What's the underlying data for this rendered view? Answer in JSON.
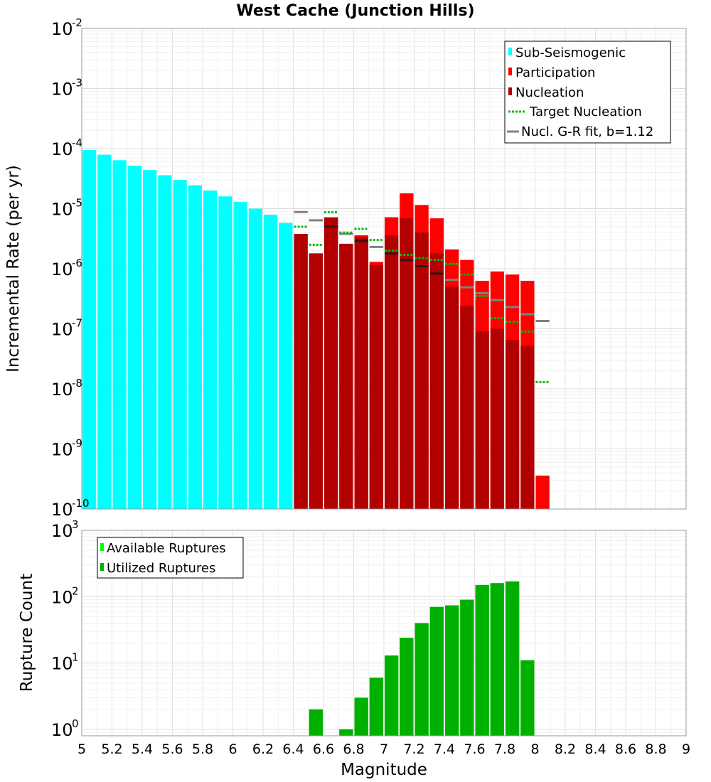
{
  "chart_data": [
    {
      "type": "bar",
      "title": "West Cache (Junction Hills)",
      "xlabel": "",
      "ylabel": "Incremental Rate (per yr)",
      "yscale": "log",
      "xlim": [
        5,
        9
      ],
      "ylim_exponents": [
        -10,
        -2
      ],
      "bin_width": 0.1,
      "legend_position": "top-right",
      "grid": true,
      "x": [
        5.05,
        5.15,
        5.25,
        5.35,
        5.45,
        5.55,
        5.65,
        5.75,
        5.85,
        5.95,
        6.05,
        6.15,
        6.25,
        6.35,
        6.45,
        6.55,
        6.65,
        6.75,
        6.85,
        6.95,
        7.05,
        7.15,
        7.25,
        7.35,
        7.45,
        7.55,
        7.65,
        7.75,
        7.85,
        7.95,
        8.05
      ],
      "series": [
        {
          "name": "Sub-Seismogenic",
          "color": "#00ffff",
          "style": "bar",
          "values": [
            9.5e-05,
            7.9e-05,
            6.4e-05,
            5.2e-05,
            4.4e-05,
            3.6e-05,
            3e-05,
            2.45e-05,
            2e-05,
            1.6e-05,
            1.3e-05,
            1e-05,
            7.9e-06,
            5.8e-06,
            null,
            null,
            null,
            null,
            null,
            null,
            null,
            null,
            null,
            null,
            null,
            null,
            null,
            null,
            null,
            null,
            null
          ]
        },
        {
          "name": "Participation",
          "color": "#ff0000",
          "style": "bar",
          "values": [
            null,
            null,
            null,
            null,
            null,
            null,
            null,
            null,
            null,
            null,
            null,
            null,
            null,
            null,
            3.8e-06,
            1.8e-06,
            7.2e-06,
            2.6e-06,
            3.6e-06,
            1.3e-06,
            7.2e-06,
            1.8e-05,
            1.15e-05,
            6.9e-06,
            2.1e-06,
            1.4e-06,
            6.3e-07,
            9e-07,
            8e-07,
            6.3e-07,
            3.6e-10
          ]
        },
        {
          "name": "Nucleation",
          "color": "#b20000",
          "style": "bar",
          "values": [
            null,
            null,
            null,
            null,
            null,
            null,
            null,
            null,
            null,
            null,
            null,
            null,
            null,
            null,
            3.8e-06,
            1.8e-06,
            7e-06,
            2.6e-06,
            3.3e-06,
            1.15e-06,
            3.6e-06,
            6.9e-06,
            4e-06,
            1.8e-06,
            5e-07,
            2.4e-07,
            9e-08,
            1e-07,
            6.5e-08,
            5.2e-08,
            null
          ]
        },
        {
          "name": "Target Nucleation",
          "color": "#00bb00",
          "style": "dotted-step",
          "values": [
            null,
            null,
            null,
            null,
            null,
            null,
            null,
            null,
            null,
            null,
            null,
            null,
            null,
            null,
            5e-06,
            2.5e-06,
            8.7e-06,
            4e-06,
            4.6e-06,
            3e-06,
            2e-06,
            1.7e-06,
            1.5e-06,
            1.4e-06,
            1.2e-06,
            8e-07,
            3.5e-07,
            1.5e-07,
            1.3e-07,
            9e-08,
            1.3e-08
          ]
        },
        {
          "name": "Nucl. G-R fit, b=1.12",
          "color": "#808080",
          "style": "step",
          "values": [
            null,
            null,
            null,
            null,
            null,
            null,
            null,
            null,
            null,
            null,
            null,
            null,
            null,
            null,
            8.8e-06,
            6.4e-06,
            5e-06,
            3.8e-06,
            2.9e-06,
            2.3e-06,
            1.8e-06,
            1.4e-06,
            1.1e-06,
            8.3e-07,
            6.5e-07,
            4.9e-07,
            3.9e-07,
            3e-07,
            2.3e-07,
            1.75e-07,
            1.35e-07
          ]
        }
      ],
      "legend": [
        "Sub-Seismogenic",
        "Participation",
        "Nucleation",
        "Target Nucleation",
        "Nucl. G-R fit, b=1.12"
      ]
    },
    {
      "type": "bar",
      "title": "",
      "xlabel": "Magnitude",
      "ylabel": "Rupture Count",
      "yscale": "log",
      "xlim": [
        5,
        9
      ],
      "ylim": [
        0.8,
        1000
      ],
      "bin_width": 0.1,
      "legend_position": "top-left",
      "grid": true,
      "x_ticks": [
        "5",
        "5.2",
        "5.4",
        "5.6",
        "5.8",
        "6",
        "6.2",
        "6.4",
        "6.6",
        "6.8",
        "7",
        "7.2",
        "7.4",
        "7.6",
        "7.8",
        "8",
        "8.2",
        "8.4",
        "8.6",
        "8.8",
        "9"
      ],
      "x": [
        6.55,
        6.75,
        6.85,
        6.95,
        7.05,
        7.15,
        7.25,
        7.35,
        7.45,
        7.55,
        7.65,
        7.75,
        7.85,
        7.95
      ],
      "series": [
        {
          "name": "Available Ruptures",
          "color": "#00ff00",
          "style": "bar",
          "values": [
            2,
            1,
            3,
            6,
            13,
            24,
            40,
            70,
            74,
            90,
            150,
            160,
            170,
            11
          ]
        },
        {
          "name": "Utilized Ruptures",
          "color": "#00b000",
          "style": "bar",
          "values": [
            2,
            1,
            3,
            6,
            13,
            24,
            40,
            70,
            74,
            90,
            150,
            160,
            170,
            11
          ]
        }
      ],
      "legend": [
        "Available Ruptures",
        "Utilized Ruptures"
      ]
    }
  ]
}
